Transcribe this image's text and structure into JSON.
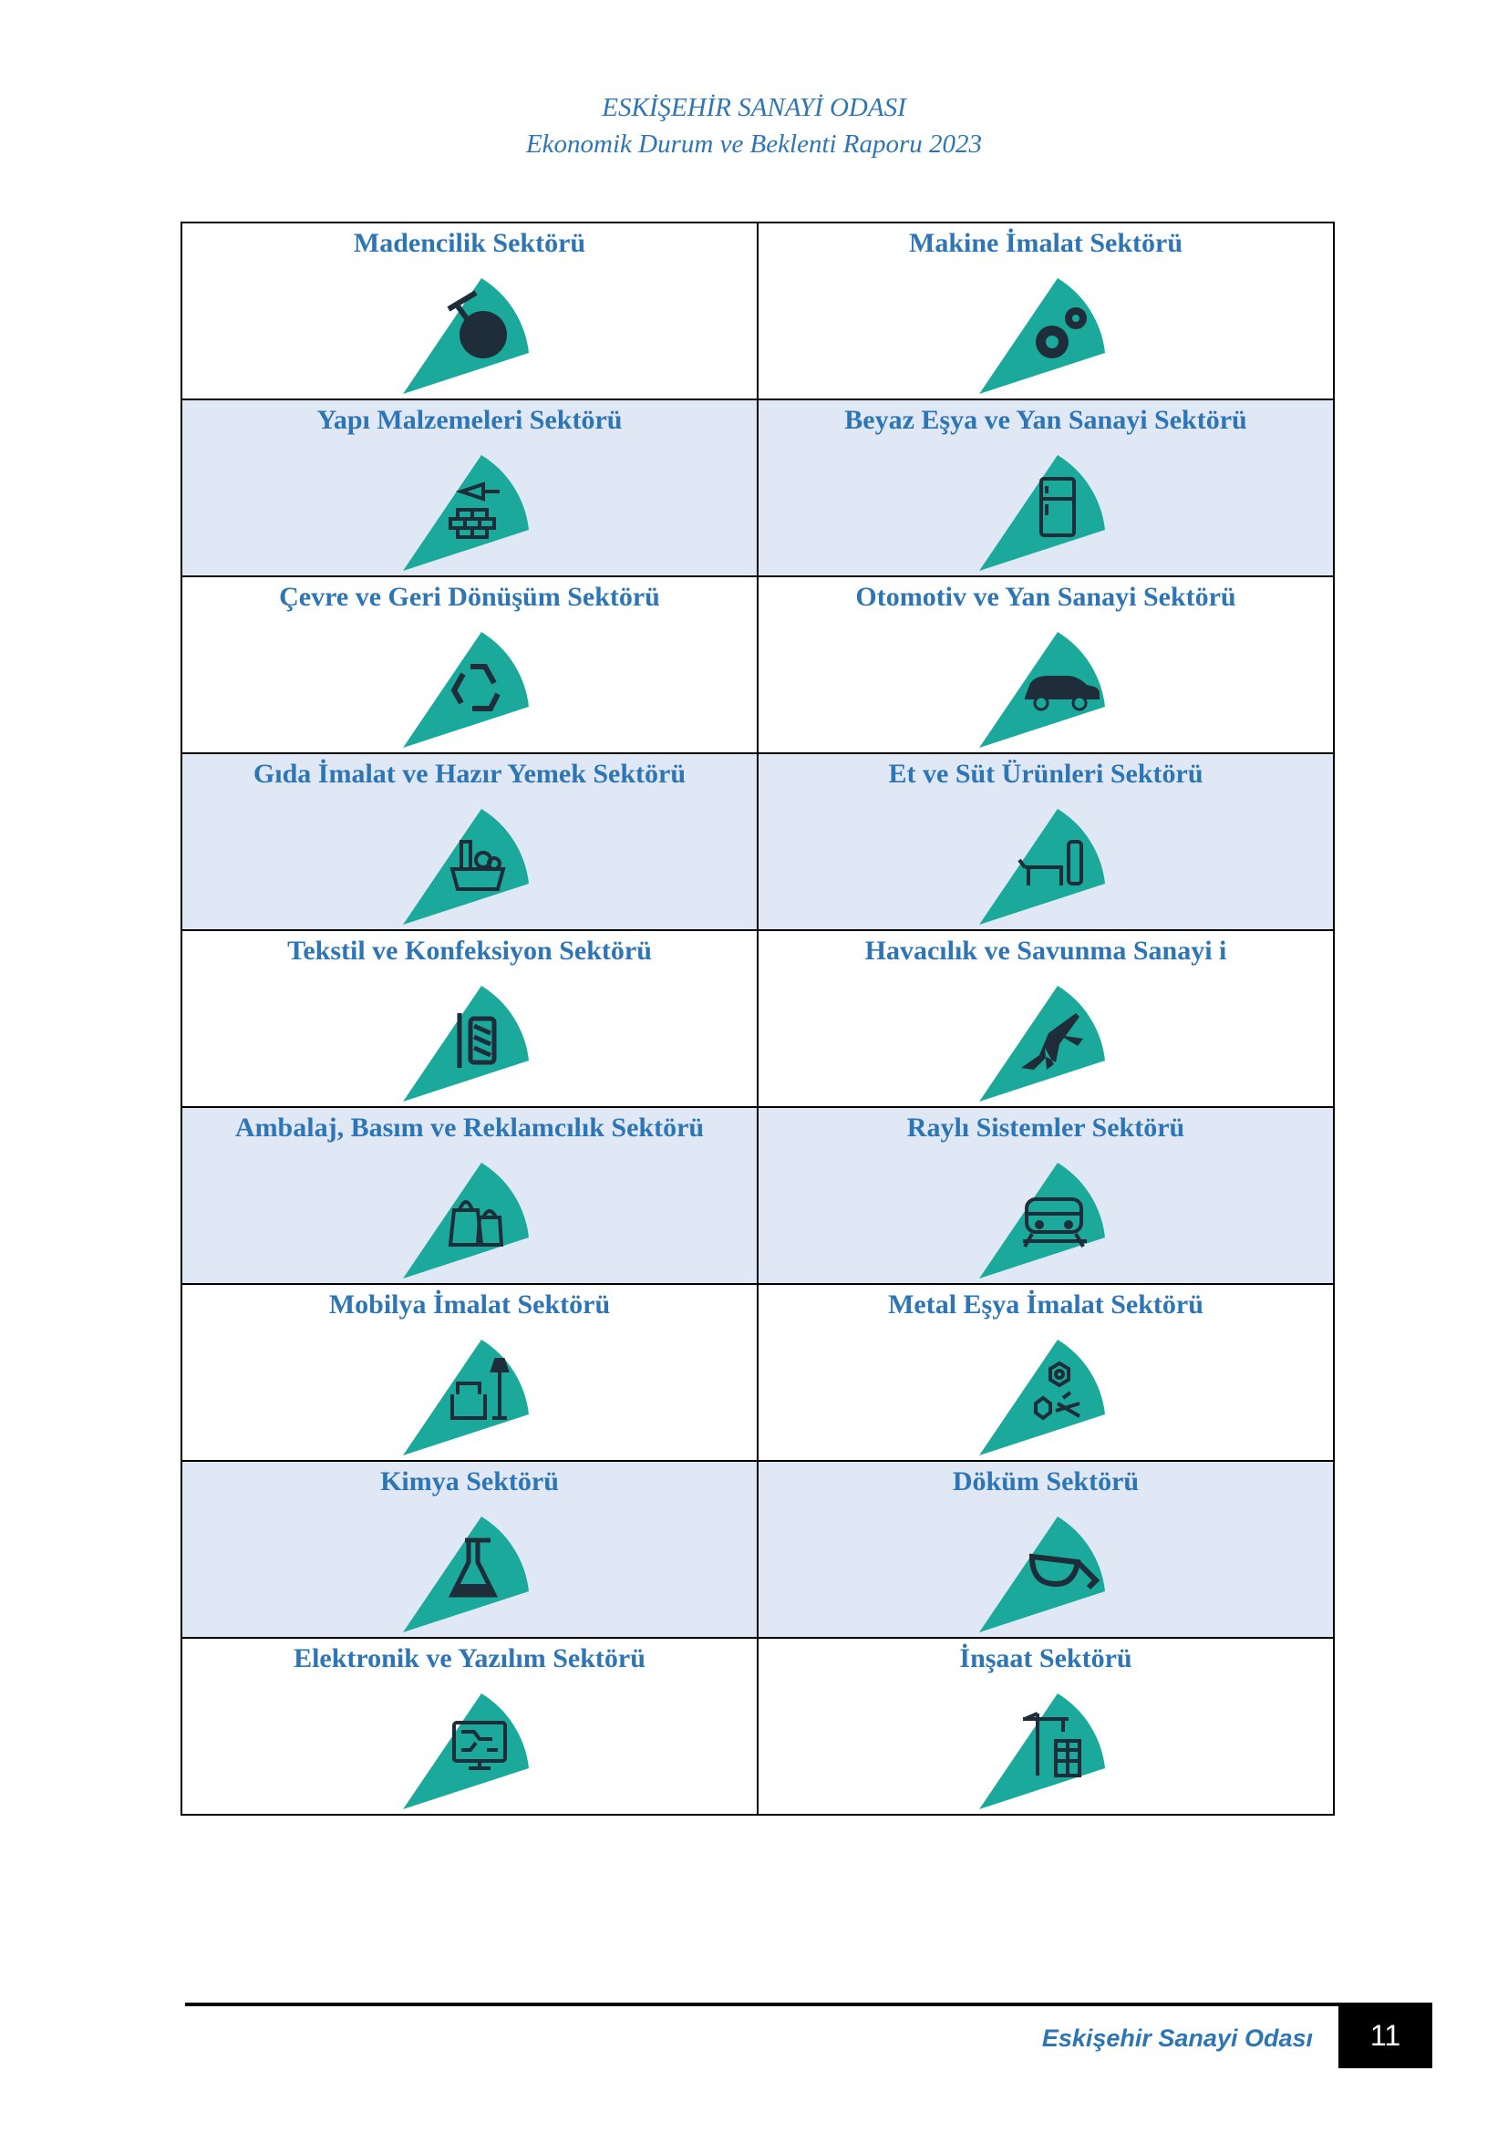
{
  "header": {
    "line1": "ESKİŞEHİR SANAYİ ODASI",
    "line2": "Ekonomik Durum ve Beklenti Raporu 2023"
  },
  "colors": {
    "accent": "#2e75b6",
    "wedge": "#1aa99a",
    "icon": "#1f2d3a",
    "shade": "#dfe8f4"
  },
  "sectors": [
    {
      "title": "Madencilik Sektörü",
      "icon": "mining-icon"
    },
    {
      "title": "Makine İmalat Sektörü",
      "icon": "gears-icon"
    },
    {
      "title": "Yapı Malzemeleri Sektörü",
      "icon": "bricks-trowel-icon"
    },
    {
      "title": "Beyaz Eşya ve Yan Sanayi Sektörü",
      "icon": "refrigerator-icon"
    },
    {
      "title": "Çevre ve Geri Dönüşüm Sektörü",
      "icon": "recycle-icon"
    },
    {
      "title": "Otomotiv ve Yan Sanayi Sektörü",
      "icon": "car-icon"
    },
    {
      "title": "Gıda İmalat ve Hazır Yemek Sektörü",
      "icon": "food-basket-icon"
    },
    {
      "title": "Et ve Süt Ürünleri Sektörü",
      "icon": "cow-milk-icon"
    },
    {
      "title": "Tekstil ve Konfeksiyon Sektörü",
      "icon": "thread-needle-icon"
    },
    {
      "title": "Havacılık ve Savunma Sanayi i",
      "icon": "jet-icon"
    },
    {
      "title": "Ambalaj, Basım ve Reklamcılık Sektörü",
      "icon": "shopping-bags-icon"
    },
    {
      "title": "Raylı Sistemler Sektörü",
      "icon": "train-icon"
    },
    {
      "title": "Mobilya İmalat Sektörü",
      "icon": "armchair-lamp-icon"
    },
    {
      "title": "Metal Eşya İmalat Sektörü",
      "icon": "bolts-nuts-icon"
    },
    {
      "title": "Kimya Sektörü",
      "icon": "flask-icon"
    },
    {
      "title": "Döküm Sektörü",
      "icon": "ladle-icon"
    },
    {
      "title": "Elektronik ve Yazılım Sektörü",
      "icon": "circuit-monitor-icon"
    },
    {
      "title": "İnşaat Sektörü",
      "icon": "crane-building-icon"
    }
  ],
  "footer": {
    "org": "Eskişehir Sanayi Odası",
    "page_number": "11"
  }
}
